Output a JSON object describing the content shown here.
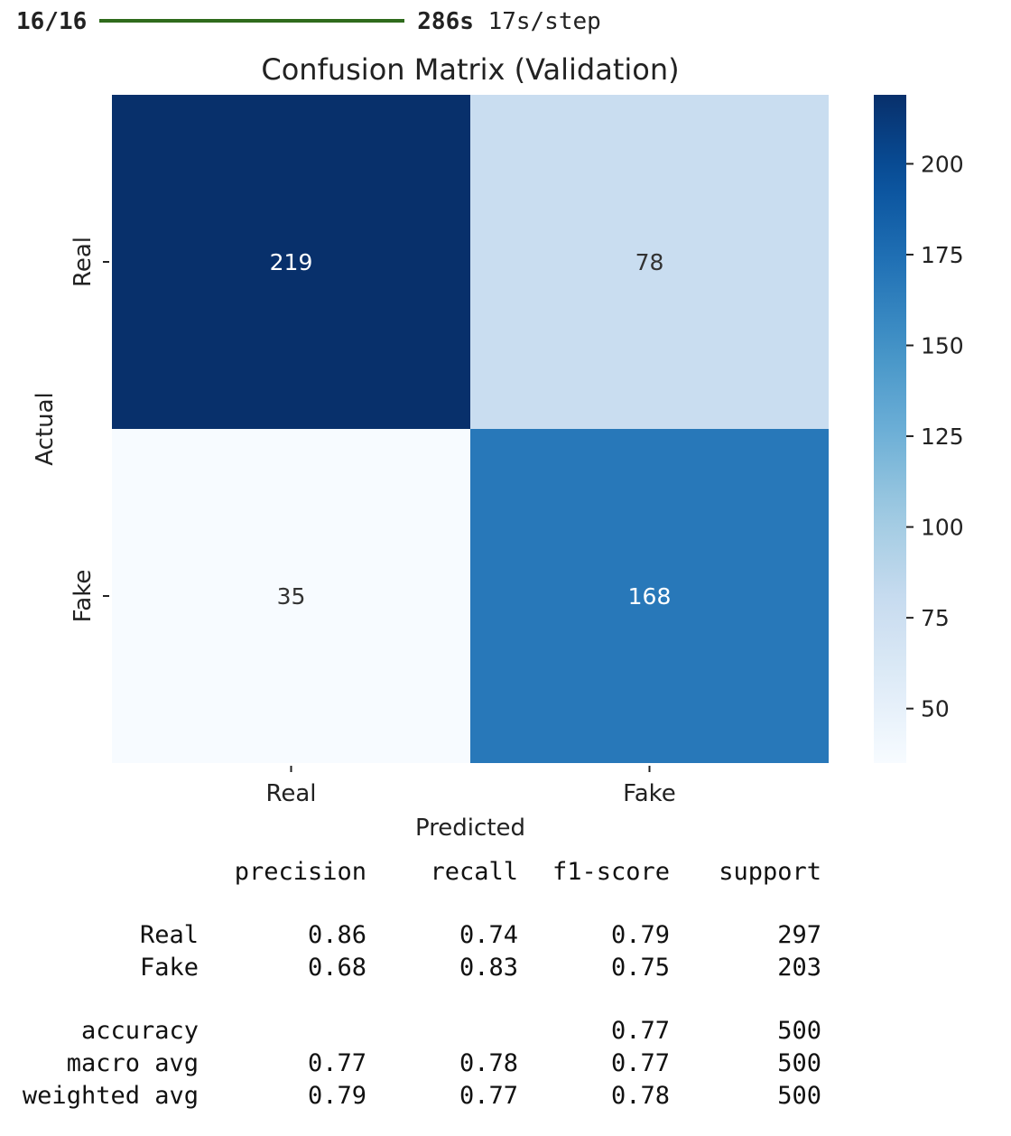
{
  "progress": {
    "steps": "16/16",
    "fraction": 1.0,
    "bar_color": "#2f6b1c",
    "elapsed": "286s",
    "rate": "17s/step"
  },
  "chart_data": {
    "type": "heatmap",
    "title": "Confusion Matrix (Validation)",
    "xlabel": "Predicted",
    "ylabel": "Actual",
    "x_categories": [
      "Real",
      "Fake"
    ],
    "y_categories": [
      "Real",
      "Fake"
    ],
    "values": [
      [
        219,
        78
      ],
      [
        35,
        168
      ]
    ],
    "colormap": "Blues",
    "colorbar": {
      "range": [
        35,
        219
      ],
      "ticks": [
        200,
        175,
        150,
        125,
        100,
        75,
        50
      ]
    }
  },
  "report": {
    "header": [
      "",
      "precision",
      "recall",
      "f1-score",
      "support"
    ],
    "rows": [
      [
        "Real",
        "0.86",
        "0.74",
        "0.79",
        "297"
      ],
      [
        "Fake",
        "0.68",
        "0.83",
        "0.75",
        "203"
      ]
    ],
    "summary": [
      [
        "accuracy",
        "",
        "",
        "0.77",
        "500"
      ],
      [
        "macro avg",
        "0.77",
        "0.78",
        "0.77",
        "500"
      ],
      [
        "weighted avg",
        "0.79",
        "0.77",
        "0.78",
        "500"
      ]
    ]
  }
}
